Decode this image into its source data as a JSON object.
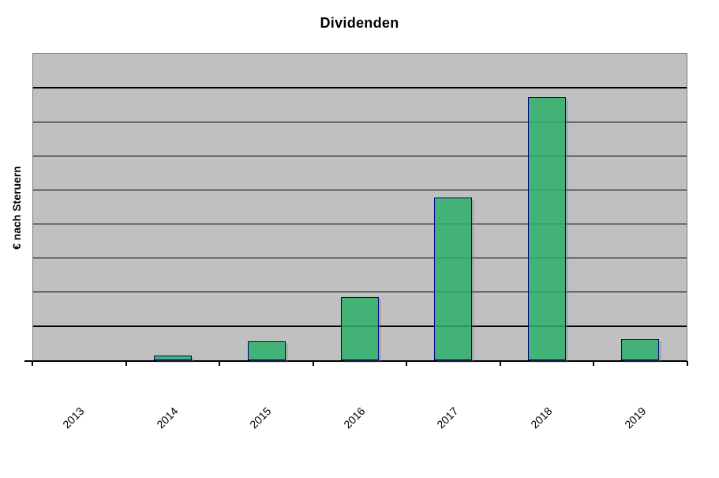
{
  "chart_data": {
    "type": "bar",
    "title": "Dividenden",
    "ylabel": "€ nach Steruern",
    "xlabel": "",
    "categories": [
      "2013",
      "2014",
      "2015",
      "2016",
      "2017",
      "2018",
      "2019"
    ],
    "values": [
      0,
      0.14,
      0.55,
      1.86,
      4.78,
      7.73,
      0.63
    ],
    "series_name": "Dividenden",
    "y_axis": {
      "tick_labels_visible": false,
      "units_note": "axis has no numeric labels; values estimated in gridline units",
      "ylim": [
        0,
        9
      ],
      "gridline_interval": 1,
      "inner_gridline_count": 8
    },
    "legend_position": "none",
    "grid": "horizontal",
    "x_tick_label_rotation_deg": 45,
    "colors": {
      "bar_fill": "rgba(45,175,105,0.85)",
      "bar_fill_hex_approx": "#42B377",
      "bar_border": "#000080",
      "bar_shadow": "#A8B0B4",
      "plot_background": "#C0C0C0",
      "plot_border": "#7F7F7F",
      "gridline": "#000000",
      "axis_line": "#000000",
      "text": "#000000",
      "page_background": "#FFFFFF"
    }
  }
}
